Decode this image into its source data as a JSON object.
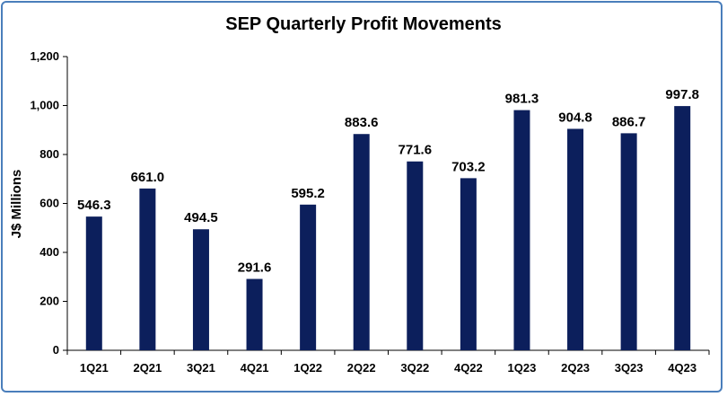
{
  "chart_data": {
    "type": "bar",
    "title": "SEP Quarterly Profit Movements",
    "ylabel": "J$ Millions",
    "xlabel": "",
    "categories": [
      "1Q21",
      "2Q21",
      "3Q21",
      "4Q21",
      "1Q22",
      "2Q22",
      "3Q22",
      "4Q22",
      "1Q23",
      "2Q23",
      "3Q23",
      "4Q23"
    ],
    "values": [
      546.3,
      661.0,
      494.5,
      291.6,
      595.2,
      883.6,
      771.6,
      703.2,
      981.3,
      904.8,
      886.7,
      997.8
    ],
    "value_labels": [
      "546.3",
      "661.0",
      "494.5",
      "291.6",
      "595.2",
      "883.6",
      "771.6",
      "703.2",
      "981.3",
      "904.8",
      "886.7",
      "997.8"
    ],
    "ylim": [
      0,
      1200
    ],
    "yticks": [
      0,
      200,
      400,
      600,
      800,
      1000,
      1200
    ],
    "ytick_labels": [
      "0",
      "200",
      "400",
      "600",
      "800",
      "1,000",
      "1,200"
    ],
    "bar_color": "#0c1f5c",
    "grid": false,
    "legend": "none"
  }
}
